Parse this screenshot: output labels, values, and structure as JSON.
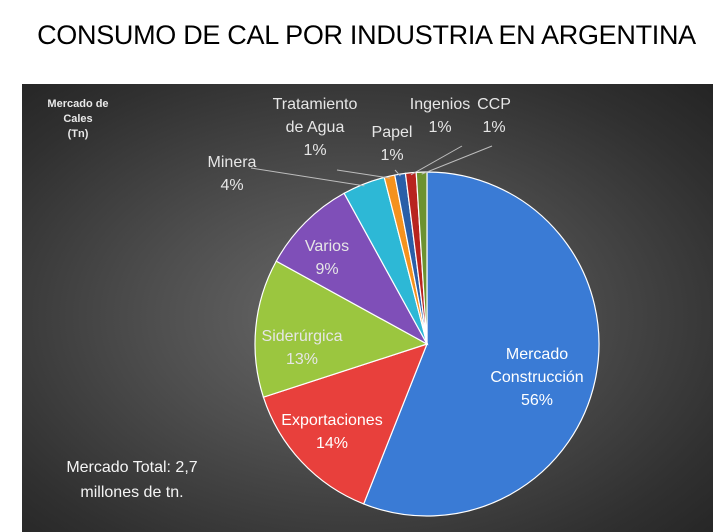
{
  "page": {
    "title": "CONSUMO DE CAL POR INDUSTRIA EN ARGENTINA"
  },
  "chart_data": {
    "type": "pie",
    "title": "Mercado de Cales (Tn)",
    "title_lines": [
      "Mercado de Cales",
      "(Tn)"
    ],
    "note_lines": [
      "Mercado Total: 2,7",
      "millones de tn."
    ],
    "slices": [
      {
        "label": "Mercado Construcción",
        "label_lines": [
          "Mercado",
          "Construcción"
        ],
        "value": 56,
        "pct_label": "56%",
        "color": "#3a7bd5"
      },
      {
        "label": "Exportaciones",
        "label_lines": [
          "Exportaciones"
        ],
        "value": 14,
        "pct_label": "14%",
        "color": "#e8403c"
      },
      {
        "label": "Siderúrgica",
        "label_lines": [
          "Siderúrgica"
        ],
        "value": 13,
        "pct_label": "13%",
        "color": "#9bc63f"
      },
      {
        "label": "Varios",
        "label_lines": [
          "Varios"
        ],
        "value": 9,
        "pct_label": "9%",
        "color": "#7f4fb8"
      },
      {
        "label": "Minera",
        "label_lines": [
          "Minera"
        ],
        "value": 4,
        "pct_label": "4%",
        "color": "#2db8d6"
      },
      {
        "label": "Tratamiento de Agua",
        "label_lines": [
          "Tratamiento",
          "de Agua"
        ],
        "value": 1,
        "pct_label": "1%",
        "color": "#f5921e"
      },
      {
        "label": "Papel",
        "label_lines": [
          "Papel"
        ],
        "value": 1,
        "pct_label": "1%",
        "color": "#2a5fa8"
      },
      {
        "label": "Ingenios",
        "label_lines": [
          "Ingenios"
        ],
        "value": 1,
        "pct_label": "1%",
        "color": "#b8241f"
      },
      {
        "label": "CCP",
        "label_lines": [
          "CCP"
        ],
        "value": 1,
        "pct_label": "1%",
        "color": "#6d9230"
      }
    ]
  }
}
